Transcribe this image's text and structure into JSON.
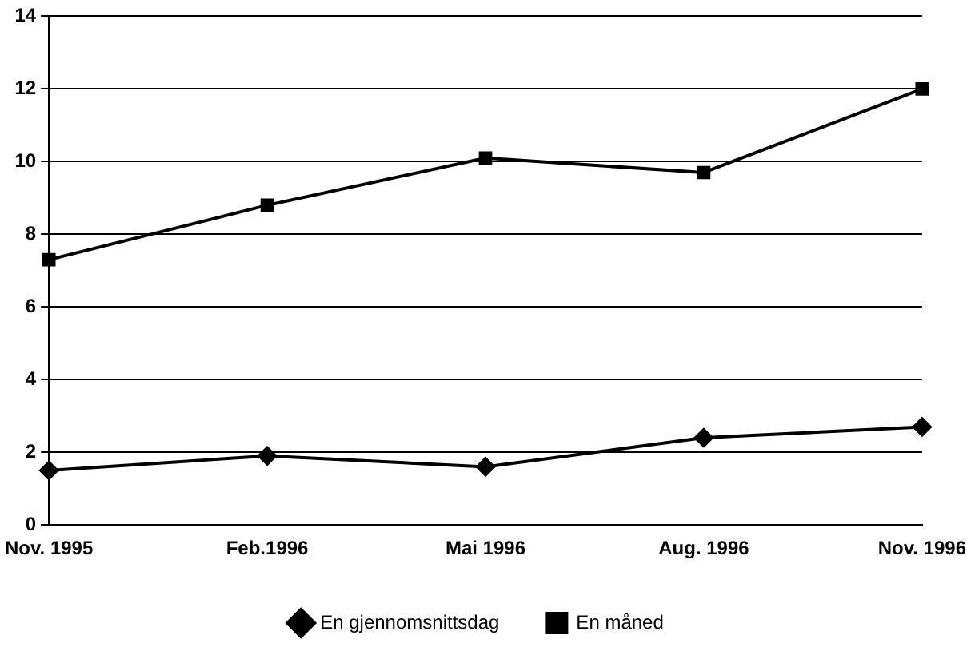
{
  "chart_data": {
    "type": "line",
    "categories": [
      "Nov. 1995",
      "Feb.1996",
      "Mai 1996",
      "Aug. 1996",
      "Nov. 1996"
    ],
    "series": [
      {
        "name": "En gjennomsnittsdag",
        "color": "#000000",
        "marker": "diamond",
        "values": [
          1.5,
          1.9,
          1.6,
          2.4,
          2.7
        ]
      },
      {
        "name": "En måned",
        "color": "#000000",
        "marker": "square",
        "values": [
          7.3,
          8.8,
          10.1,
          9.7,
          12.0
        ]
      }
    ],
    "ylim": [
      0,
      14
    ],
    "yticks": [
      0,
      2,
      4,
      6,
      8,
      10,
      12,
      14
    ],
    "grid": "y",
    "legend": "bottom",
    "line_style": "solid"
  }
}
